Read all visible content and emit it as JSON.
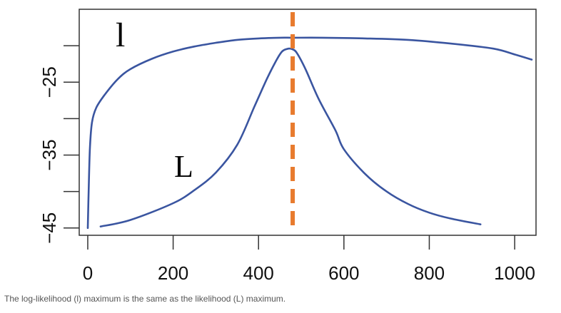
{
  "caption": "The log-likelihood (l) maximum is the same as the likelihood (L) maximum.",
  "chart_data": {
    "type": "line",
    "title": "",
    "xlabel": "",
    "ylabel": "",
    "xlim": [
      -20,
      1050
    ],
    "ylim": [
      -46,
      -15
    ],
    "x_ticks": [
      0,
      200,
      400,
      600,
      800,
      1000
    ],
    "x_tick_labels": [
      "0",
      "200",
      "400",
      "600",
      "800",
      "1000"
    ],
    "y_ticks": [
      -45,
      -40,
      -35,
      -30,
      -25,
      -20
    ],
    "y_tick_labels": [
      "-45",
      "",
      "-35",
      "",
      "-25",
      ""
    ],
    "grid": false,
    "series": [
      {
        "name": "l",
        "color": "#3a55a0",
        "points": [
          [
            0,
            -45
          ],
          [
            2,
            -40
          ],
          [
            5,
            -34
          ],
          [
            10,
            -30.5
          ],
          [
            20,
            -28.5
          ],
          [
            40,
            -26.7
          ],
          [
            70,
            -24.6
          ],
          [
            100,
            -23.2
          ],
          [
            150,
            -21.8
          ],
          [
            200,
            -20.8
          ],
          [
            250,
            -20.1
          ],
          [
            300,
            -19.6
          ],
          [
            350,
            -19.2
          ],
          [
            400,
            -19.0
          ],
          [
            450,
            -18.9
          ],
          [
            480,
            -18.9
          ],
          [
            550,
            -18.9
          ],
          [
            650,
            -19.0
          ],
          [
            750,
            -19.2
          ],
          [
            850,
            -19.7
          ],
          [
            950,
            -20.4
          ],
          [
            1000,
            -21.2
          ],
          [
            1040,
            -21.9
          ]
        ]
      },
      {
        "name": "L",
        "color": "#3a55a0",
        "points": [
          [
            30,
            -44.8
          ],
          [
            100,
            -43.9
          ],
          [
            200,
            -41.6
          ],
          [
            250,
            -39.8
          ],
          [
            300,
            -37.4
          ],
          [
            350,
            -33.6
          ],
          [
            390,
            -28.4
          ],
          [
            420,
            -24.5
          ],
          [
            440,
            -22.2
          ],
          [
            455,
            -20.8
          ],
          [
            470,
            -20.4
          ],
          [
            480,
            -20.5
          ],
          [
            490,
            -21.0
          ],
          [
            510,
            -23.2
          ],
          [
            540,
            -27.2
          ],
          [
            580,
            -31.6
          ],
          [
            600,
            -34.2
          ],
          [
            650,
            -37.6
          ],
          [
            700,
            -40.0
          ],
          [
            750,
            -41.7
          ],
          [
            800,
            -42.9
          ],
          [
            850,
            -43.7
          ],
          [
            920,
            -44.5
          ]
        ]
      }
    ],
    "vline": {
      "x": 480,
      "color": "#e87b2e",
      "style": "dashed"
    }
  }
}
